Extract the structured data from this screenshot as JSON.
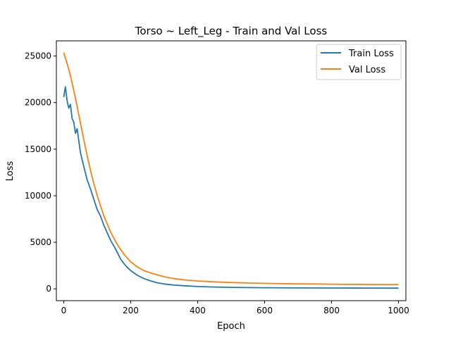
{
  "chart_data": {
    "type": "line",
    "title": "Torso ~ Left_Leg - Train and Val Loss",
    "xlabel": "Epoch",
    "ylabel": "Loss",
    "xlim": [
      -22,
      1022
    ],
    "ylim": [
      -1270,
      26630
    ],
    "xticks": [
      0,
      200,
      400,
      600,
      800,
      1000
    ],
    "yticks": [
      0,
      5000,
      10000,
      15000,
      20000,
      25000
    ],
    "legend_position": "top-right",
    "grid": false,
    "series": [
      {
        "name": "Train Loss",
        "color": "#1f77b4",
        "x": [
          0,
          5,
          10,
          15,
          20,
          25,
          30,
          35,
          40,
          45,
          50,
          60,
          70,
          80,
          90,
          100,
          110,
          120,
          130,
          140,
          150,
          160,
          170,
          180,
          190,
          200,
          220,
          240,
          260,
          280,
          300,
          330,
          360,
          400,
          450,
          500,
          600,
          700,
          800,
          900,
          1000
        ],
        "y": [
          20600,
          21700,
          20200,
          19400,
          19800,
          18300,
          17900,
          16700,
          17200,
          15900,
          14600,
          13100,
          11700,
          10700,
          9600,
          8500,
          7800,
          6800,
          6000,
          5200,
          4600,
          3900,
          3200,
          2700,
          2300,
          1950,
          1450,
          1100,
          850,
          650,
          520,
          400,
          330,
          250,
          200,
          160,
          120,
          100,
          90,
          80,
          75
        ]
      },
      {
        "name": "Val Loss",
        "color": "#ff7f0e",
        "x": [
          0,
          10,
          20,
          30,
          40,
          50,
          60,
          70,
          80,
          90,
          100,
          120,
          140,
          160,
          180,
          200,
          220,
          240,
          260,
          280,
          300,
          330,
          360,
          400,
          450,
          500,
          550,
          600,
          650,
          700,
          750,
          800,
          850,
          900,
          950,
          1000
        ],
        "y": [
          25350,
          24200,
          22900,
          21300,
          19600,
          17800,
          16000,
          14300,
          12700,
          11300,
          10000,
          7800,
          6100,
          4750,
          3700,
          2900,
          2350,
          1950,
          1700,
          1500,
          1300,
          1100,
          960,
          850,
          750,
          680,
          630,
          590,
          560,
          540,
          520,
          500,
          480,
          470,
          460,
          460
        ]
      }
    ]
  }
}
